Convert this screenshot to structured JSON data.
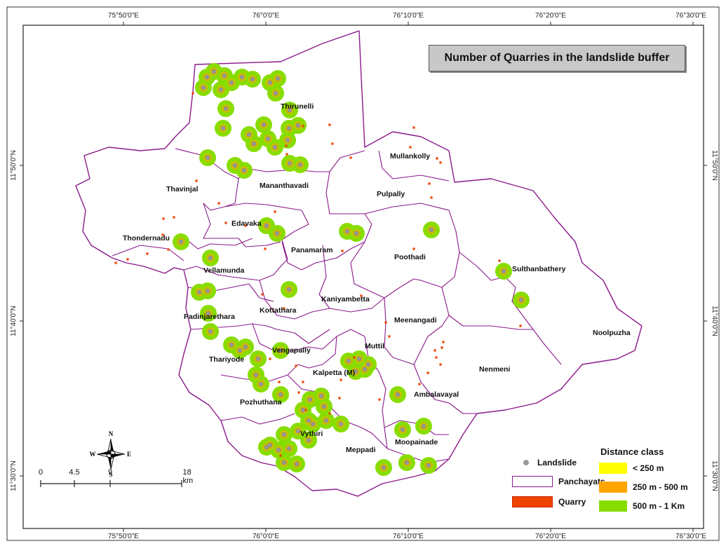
{
  "map": {
    "title": "Number of Quarries in the landslide buffer",
    "graticule": {
      "top_labels": [
        "75°50'0\"E",
        "76°0'0\"E",
        "76°10'0\"E",
        "76°20'0\"E",
        "76°30'0\"E"
      ],
      "bottom_labels": [
        "75°50'0\"E",
        "76°0'0\"E",
        "76°10'0\"E",
        "76°20'0\"E",
        "76°30'0\"E"
      ],
      "left_labels": [
        "11°50'0\"N",
        "11°40'0\"N",
        "11°30'0\"N"
      ],
      "right_labels": [
        "11°50'0\"N",
        "11°40'0\"N",
        "11°30'0\"N"
      ]
    },
    "panchayats": [
      "Thirunelli",
      "Mullankolly",
      "Thavinjal",
      "Mananthavadi",
      "Pulpally",
      "Edavaka",
      "Thondernadu",
      "Panamaram",
      "Poothadi",
      "Vellamunda",
      "Sulthanbathery",
      "Kaniyambetta",
      "Kottathara",
      "Padinjarethara",
      "Meenangadi",
      "Noolpuzha",
      "Muttil",
      "Vengapally",
      "Thariyode",
      "Kalpetta (M)",
      "Nenmeni",
      "Ambalavayal",
      "Pozhuthana",
      "Vythiri",
      "Meppadi",
      "Moopainade"
    ],
    "colors": {
      "boundary": "#8b1a8b",
      "quarry": "#ee4400",
      "landslide": "#999999",
      "buffer_lt_250": "#ffff00",
      "buffer_250_500": "#ffa500",
      "buffer_500_1000": "#88dd00"
    }
  },
  "legend": {
    "landslide": "Landslide",
    "panchayats": "Panchayats",
    "quarry": "Quarry",
    "distance_title": "Distance class",
    "classes": [
      "< 250 m",
      "250 m - 500 m",
      "500 m - 1 Km"
    ]
  },
  "scale_bar": {
    "labels": [
      "0",
      "4.5",
      "9",
      "18 km"
    ]
  },
  "north_arrow": {
    "n": "N",
    "s": "S",
    "e": "E",
    "w": "W"
  }
}
